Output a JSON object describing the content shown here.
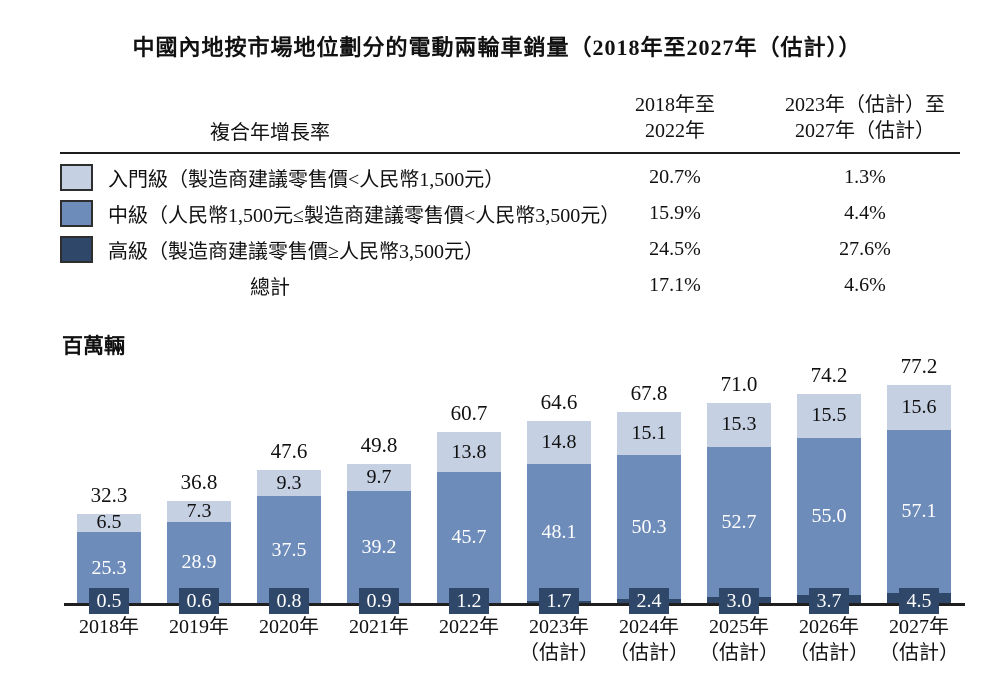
{
  "title": "中國內地按市場地位劃分的電動兩輪車銷量（2018年至2027年（估計））",
  "unit_label": "百萬輛",
  "colors": {
    "entry": "#c5d0e3",
    "mid": "#6e8cba",
    "high": "#2f4769",
    "axis": "#1f1f1f"
  },
  "cagr_table": {
    "corner_header": "複合年增長率",
    "period_headers": [
      [
        "2018年至",
        "2022年"
      ],
      [
        "2023年（估計）至",
        "2027年（估計）"
      ]
    ],
    "rows": [
      {
        "swatch": "entry",
        "label": "入門級（製造商建議零售價<人民幣1,500元）",
        "values": [
          "20.7%",
          "1.3%"
        ]
      },
      {
        "swatch": "mid",
        "label": "中級（人民幣1,500元≤製造商建議零售價<人民幣3,500元）",
        "values": [
          "15.9%",
          "4.4%"
        ]
      },
      {
        "swatch": "high",
        "label": "高級（製造商建議零售價≥人民幣3,500元）",
        "values": [
          "24.5%",
          "27.6%"
        ]
      },
      {
        "swatch": null,
        "label": "總計",
        "values": [
          "17.1%",
          "4.6%"
        ]
      }
    ]
  },
  "chart_data": {
    "type": "bar",
    "stacked": true,
    "title": "中國內地按市場地位劃分的電動兩輪車銷量（2018年至2027年（估計））",
    "ylabel": "百萬輛",
    "legend_position": "table-above",
    "grid": false,
    "categories": [
      {
        "year": "2018年",
        "note": ""
      },
      {
        "year": "2019年",
        "note": ""
      },
      {
        "year": "2020年",
        "note": ""
      },
      {
        "year": "2021年",
        "note": ""
      },
      {
        "year": "2022年",
        "note": ""
      },
      {
        "year": "2023年",
        "note": "（估計）"
      },
      {
        "year": "2024年",
        "note": "（估計）"
      },
      {
        "year": "2025年",
        "note": "（估計）"
      },
      {
        "year": "2026年",
        "note": "（估計）"
      },
      {
        "year": "2027年",
        "note": "（估計）"
      }
    ],
    "series": [
      {
        "name": "入門級",
        "color_key": "entry",
        "values": [
          6.5,
          7.3,
          9.3,
          9.7,
          13.8,
          14.8,
          15.1,
          15.3,
          15.5,
          15.6
        ]
      },
      {
        "name": "中級",
        "color_key": "mid",
        "values": [
          25.3,
          28.9,
          37.5,
          39.2,
          45.7,
          48.1,
          50.3,
          52.7,
          55.0,
          57.1
        ]
      },
      {
        "name": "高級",
        "color_key": "high",
        "values": [
          0.5,
          0.6,
          0.8,
          0.9,
          1.2,
          1.7,
          2.4,
          3.0,
          3.7,
          4.5
        ]
      }
    ],
    "totals": [
      32.3,
      36.8,
      47.6,
      49.8,
      60.7,
      64.6,
      67.8,
      71.0,
      74.2,
      77.2
    ]
  }
}
